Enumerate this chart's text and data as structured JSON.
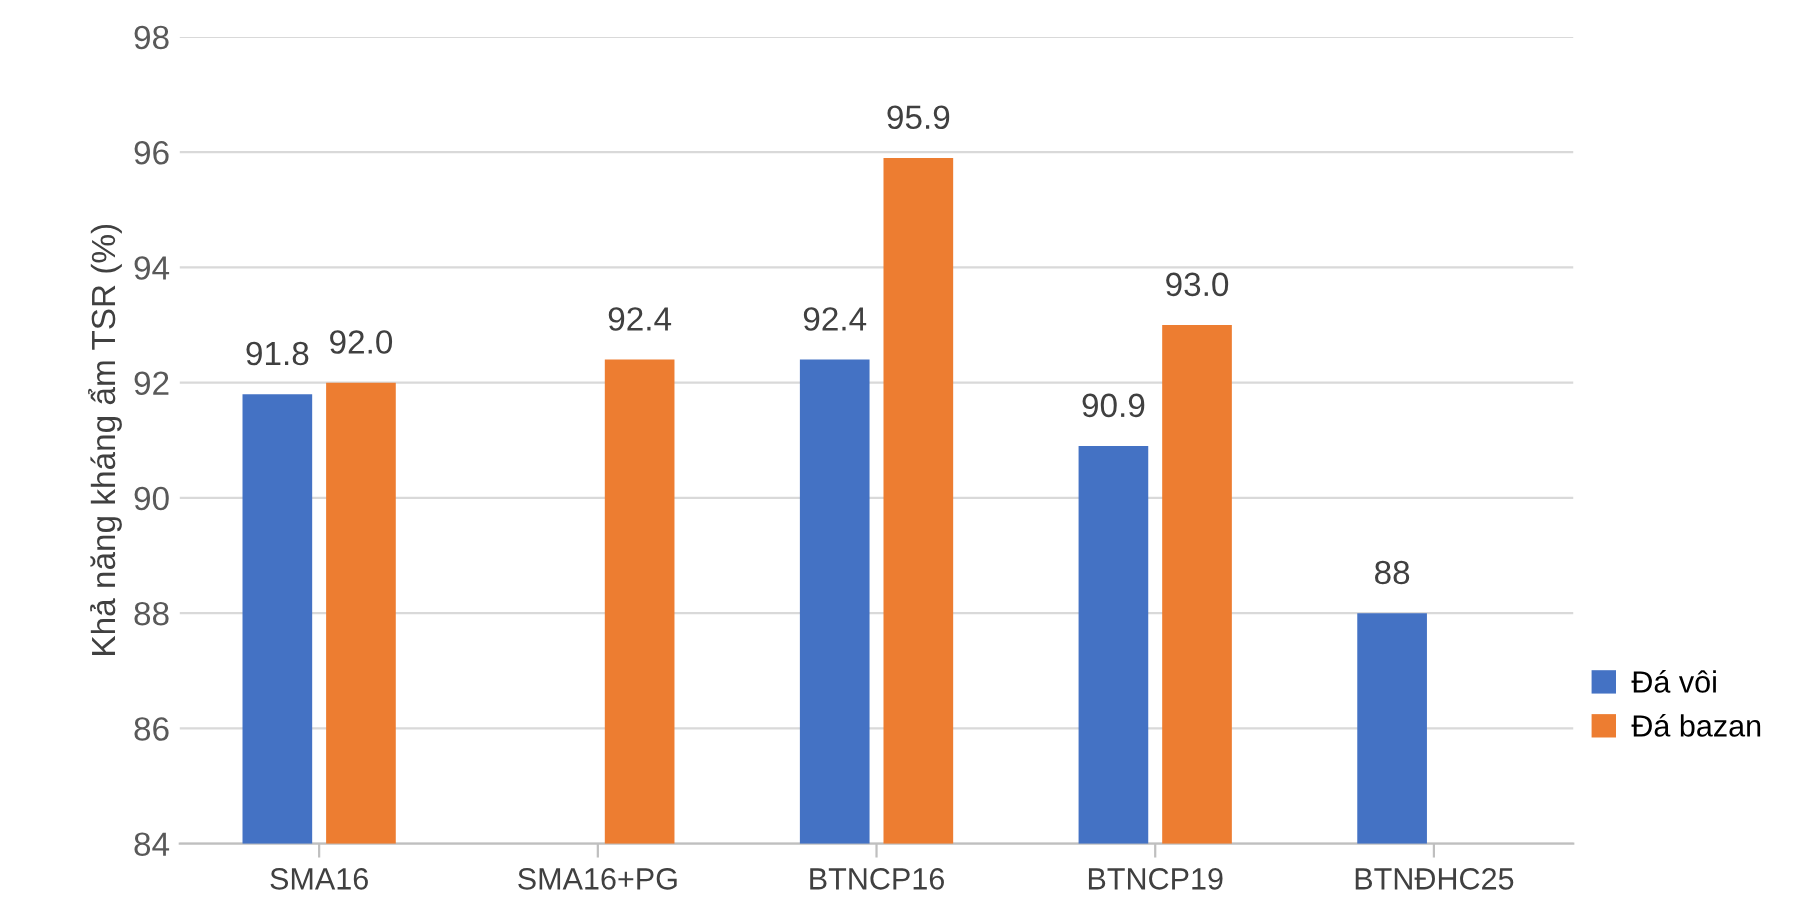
{
  "chart_data": {
    "type": "bar",
    "ylabel": "Khả năng kháng ẩm TSR (%)",
    "categories": [
      "SMA16",
      "SMA16+PG",
      "BTNCP16",
      "BTNCP19",
      "BTNĐHC25"
    ],
    "series": [
      {
        "name": "Đá vôi",
        "color": "#4472c4",
        "values": [
          91.8,
          null,
          92.4,
          90.9,
          88
        ],
        "value_labels": [
          "91.8",
          null,
          "92.4",
          "90.9",
          "88"
        ]
      },
      {
        "name": "Đá bazan",
        "color": "#ed7d31",
        "values": [
          92.0,
          92.4,
          95.9,
          93.0,
          null
        ],
        "value_labels": [
          "92.0",
          "92.4",
          "95.9",
          "93.0",
          null
        ]
      }
    ],
    "ylim": [
      84,
      98
    ],
    "yticks": [
      84,
      86,
      88,
      90,
      92,
      94,
      96,
      98
    ],
    "grid": "y",
    "legend": "right"
  }
}
